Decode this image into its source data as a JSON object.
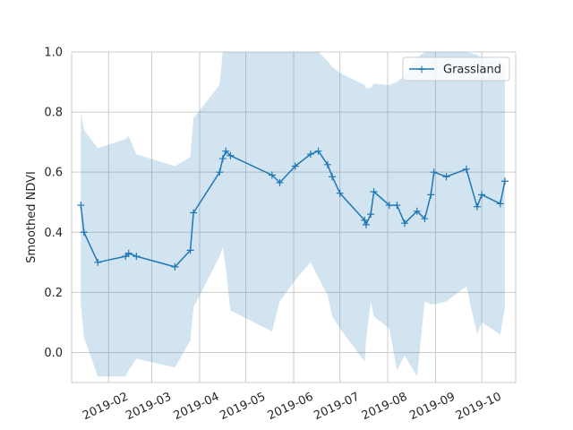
{
  "chart_data": {
    "type": "line",
    "title": "",
    "xlabel": "",
    "ylabel": "Smoothed NDVI",
    "ylim": [
      -0.1,
      1.0
    ],
    "xlim": [
      "2019-01-08",
      "2019-10-23"
    ],
    "grid": true,
    "legend_position": "top-right",
    "x_ticks": [
      "2019-02",
      "2019-03",
      "2019-04",
      "2019-05",
      "2019-06",
      "2019-07",
      "2019-08",
      "2019-09",
      "2019-10"
    ],
    "y_ticks": [
      "0.0",
      "0.2",
      "0.4",
      "0.6",
      "0.8",
      "1.0"
    ],
    "series": [
      {
        "name": "Grassland",
        "color": "#1f77b4",
        "marker": "plus",
        "x": [
          "2019-01-14",
          "2019-01-16",
          "2019-01-25",
          "2019-02-12",
          "2019-02-14",
          "2019-02-19",
          "2019-03-16",
          "2019-03-26",
          "2019-03-28",
          "2019-04-14",
          "2019-04-16",
          "2019-04-18",
          "2019-04-21",
          "2019-05-18",
          "2019-05-23",
          "2019-06-02",
          "2019-06-12",
          "2019-06-17",
          "2019-06-23",
          "2019-06-26",
          "2019-07-01",
          "2019-07-17",
          "2019-07-18",
          "2019-07-21",
          "2019-07-23",
          "2019-08-02",
          "2019-08-07",
          "2019-08-12",
          "2019-08-20",
          "2019-08-25",
          "2019-08-29",
          "2019-08-31",
          "2019-09-08",
          "2019-09-21",
          "2019-09-28",
          "2019-10-01",
          "2019-10-13",
          "2019-10-16"
        ],
        "y": [
          0.49,
          0.4,
          0.3,
          0.32,
          0.33,
          0.32,
          0.285,
          0.34,
          0.465,
          0.6,
          0.645,
          0.67,
          0.655,
          0.59,
          0.565,
          0.62,
          0.66,
          0.67,
          0.625,
          0.585,
          0.53,
          0.44,
          0.425,
          0.46,
          0.535,
          0.49,
          0.49,
          0.43,
          0.47,
          0.445,
          0.525,
          0.6,
          0.585,
          0.61,
          0.485,
          0.525,
          0.495,
          0.57
        ],
        "band_upper": [
          0.8,
          0.74,
          0.68,
          0.71,
          0.72,
          0.66,
          0.62,
          0.65,
          0.78,
          0.89,
          1.0,
          1.0,
          1.0,
          1.0,
          1.0,
          1.0,
          1.0,
          1.0,
          0.97,
          0.95,
          0.93,
          0.89,
          0.88,
          0.88,
          0.895,
          0.89,
          0.9,
          0.92,
          0.98,
          1.0,
          1.0,
          1.0,
          1.0,
          1.0,
          0.99,
          0.98,
          0.97,
          0.96
        ],
        "band_lower": [
          0.16,
          0.05,
          -0.08,
          -0.08,
          -0.06,
          -0.02,
          -0.05,
          0.04,
          0.15,
          0.32,
          0.35,
          0.28,
          0.14,
          0.07,
          0.17,
          0.24,
          0.3,
          0.25,
          0.19,
          0.12,
          0.08,
          -0.03,
          0.04,
          0.17,
          0.12,
          0.08,
          -0.06,
          -0.01,
          -0.08,
          0.17,
          0.16,
          0.16,
          0.17,
          0.22,
          0.06,
          0.1,
          0.06,
          0.15
        ]
      }
    ]
  }
}
